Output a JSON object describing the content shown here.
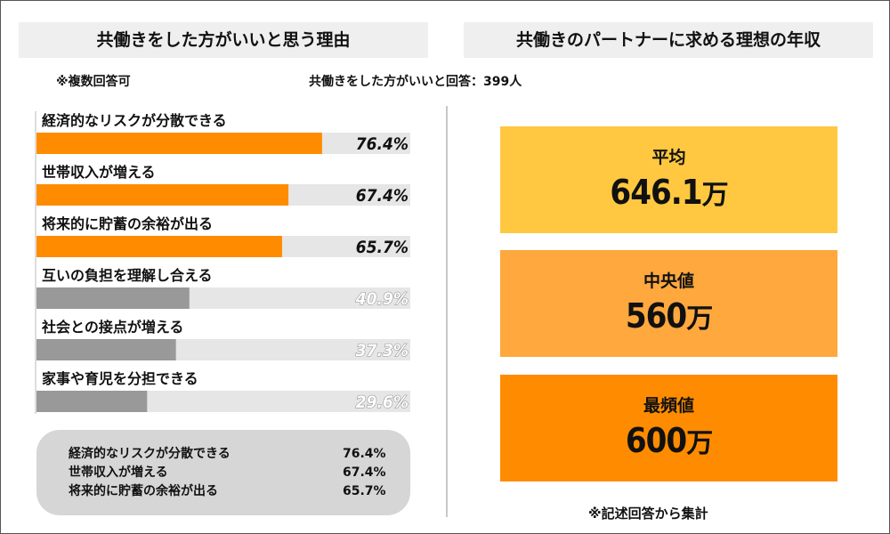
{
  "headers": {
    "left": "共働きをした方がいいと思う理由",
    "right": "共働きのパートナーに求める理想の年収"
  },
  "notes": {
    "multiple": "※複数回答可",
    "respondents": "共働きをした方がいいと回答：399人"
  },
  "chart_data": {
    "type": "bar",
    "orientation": "horizontal",
    "categories": [
      "経済的なリスクが分散できる",
      "世帯収入が増える",
      "将来的に貯蓄の余裕が出る",
      "互いの負担を理解し合える",
      "社会との接点が増える",
      "家事や育児を分担できる"
    ],
    "values": [
      76.4,
      67.4,
      65.7,
      40.9,
      37.3,
      29.6
    ],
    "value_labels": [
      "76.4%",
      "67.4%",
      "65.7%",
      "40.9%",
      "37.3%",
      "29.6%"
    ],
    "unit": "%",
    "xlim": [
      0,
      100
    ],
    "highlight_top_n": 3,
    "colors": {
      "highlight": "#ff8c00",
      "normal": "#999999",
      "track": "#e6e6e6"
    }
  },
  "summary": [
    {
      "label": "経済的なリスクが分散できる",
      "value": "76.4%"
    },
    {
      "label": "世帯収入が増える",
      "value": "67.4%"
    },
    {
      "label": "将来的に貯蓄の余裕が出る",
      "value": "65.7%"
    }
  ],
  "stats": [
    {
      "label": "平均",
      "value": "646.1",
      "unit": "万",
      "color": "#ffc840"
    },
    {
      "label": "中央値",
      "value": "560",
      "unit": "万",
      "color": "#ffa83e"
    },
    {
      "label": "最頻値",
      "value": "600",
      "unit": "万",
      "color": "#ff8c00"
    }
  ],
  "footnote": "※記述回答から集計"
}
